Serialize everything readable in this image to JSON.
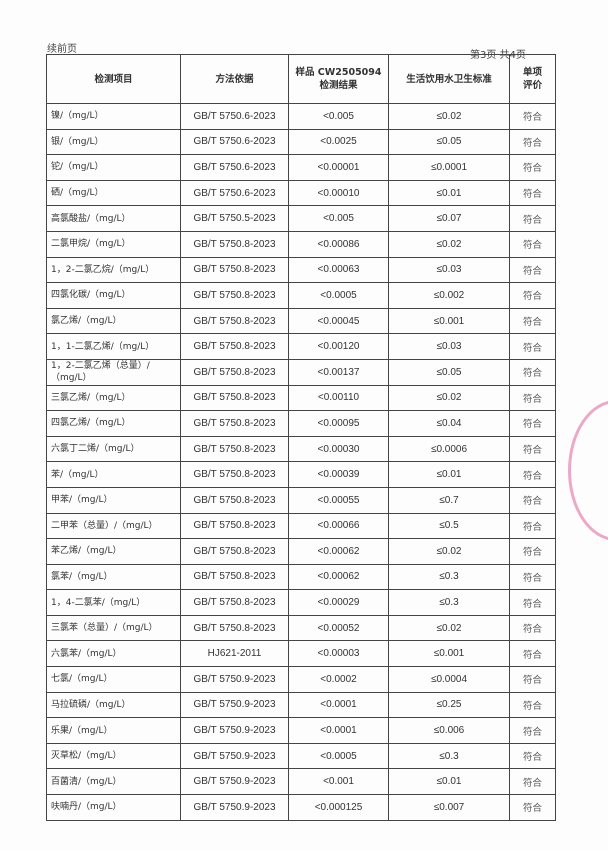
{
  "header": {
    "continued": "续前页",
    "page_info": "第3页 共4页"
  },
  "table": {
    "columns": [
      "检测项目",
      "方法依据",
      "样品 CW2505094\n检测结果",
      "生活饮用水卫生标准",
      "单项\n评价"
    ],
    "rows": [
      [
        "镍/（mg/L）",
        "GB/T 5750.6-2023",
        "<0.005",
        "≤0.02",
        "符合"
      ],
      [
        "银/（mg/L）",
        "GB/T 5750.6-2023",
        "<0.0025",
        "≤0.05",
        "符合"
      ],
      [
        "铊/（mg/L）",
        "GB/T 5750.6-2023",
        "<0.00001",
        "≤0.0001",
        "符合"
      ],
      [
        "硒/（mg/L）",
        "GB/T 5750.6-2023",
        "<0.00010",
        "≤0.01",
        "符合"
      ],
      [
        "高氯酸盐/（mg/L）",
        "GB/T 5750.5-2023",
        "<0.005",
        "≤0.07",
        "符合"
      ],
      [
        "二氯甲烷/（mg/L）",
        "GB/T 5750.8-2023",
        "<0.00086",
        "≤0.02",
        "符合"
      ],
      [
        "1，2-二氯乙烷/（mg/L）",
        "GB/T 5750.8-2023",
        "<0.00063",
        "≤0.03",
        "符合"
      ],
      [
        "四氯化碳/（mg/L）",
        "GB/T 5750.8-2023",
        "<0.0005",
        "≤0.002",
        "符合"
      ],
      [
        "氯乙烯/（mg/L）",
        "GB/T 5750.8-2023",
        "<0.00045",
        "≤0.001",
        "符合"
      ],
      [
        "1，1-二氯乙烯/（mg/L）",
        "GB/T 5750.8-2023",
        "<0.00120",
        "≤0.03",
        "符合"
      ],
      [
        "1，2-二氯乙烯（总量）/（mg/L）",
        "GB/T 5750.8-2023",
        "<0.00137",
        "≤0.05",
        "符合"
      ],
      [
        "三氯乙烯/（mg/L）",
        "GB/T 5750.8-2023",
        "<0.00110",
        "≤0.02",
        "符合"
      ],
      [
        "四氯乙烯/（mg/L）",
        "GB/T 5750.8-2023",
        "<0.00095",
        "≤0.04",
        "符合"
      ],
      [
        "六氯丁二烯/（mg/L）",
        "GB/T 5750.8-2023",
        "<0.00030",
        "≤0.0006",
        "符合"
      ],
      [
        "苯/（mg/L）",
        "GB/T 5750.8-2023",
        "<0.00039",
        "≤0.01",
        "符合"
      ],
      [
        "甲苯/（mg/L）",
        "GB/T 5750.8-2023",
        "<0.00055",
        "≤0.7",
        "符合"
      ],
      [
        "二甲苯（总量）/（mg/L）",
        "GB/T 5750.8-2023",
        "<0.00066",
        "≤0.5",
        "符合"
      ],
      [
        "苯乙烯/（mg/L）",
        "GB/T 5750.8-2023",
        "<0.00062",
        "≤0.02",
        "符合"
      ],
      [
        "氯苯/（mg/L）",
        "GB/T 5750.8-2023",
        "<0.00062",
        "≤0.3",
        "符合"
      ],
      [
        "1，4-二氯苯/（mg/L）",
        "GB/T 5750.8-2023",
        "<0.00029",
        "≤0.3",
        "符合"
      ],
      [
        "三氯苯（总量）/（mg/L）",
        "GB/T 5750.8-2023",
        "<0.00052",
        "≤0.02",
        "符合"
      ],
      [
        "六氯苯/（mg/L）",
        "HJ621-2011",
        "<0.00003",
        "≤0.001",
        "符合"
      ],
      [
        "七氯/（mg/L）",
        "GB/T 5750.9-2023",
        "<0.0002",
        "≤0.0004",
        "符合"
      ],
      [
        "马拉硫磷/（mg/L）",
        "GB/T 5750.9-2023",
        "<0.0001",
        "≤0.25",
        "符合"
      ],
      [
        "乐果/（mg/L）",
        "GB/T 5750.9-2023",
        "<0.0001",
        "≤0.006",
        "符合"
      ],
      [
        "灭草松/（mg/L）",
        "GB/T 5750.9-2023",
        "<0.0005",
        "≤0.3",
        "符合"
      ],
      [
        "百菌清/（mg/L）",
        "GB/T 5750.9-2023",
        "<0.001",
        "≤0.01",
        "符合"
      ],
      [
        "呋喃丹/（mg/L）",
        "GB/T 5750.9-2023",
        "<0.000125",
        "≤0.007",
        "符合"
      ]
    ]
  },
  "stamp_color": "#e0609a"
}
